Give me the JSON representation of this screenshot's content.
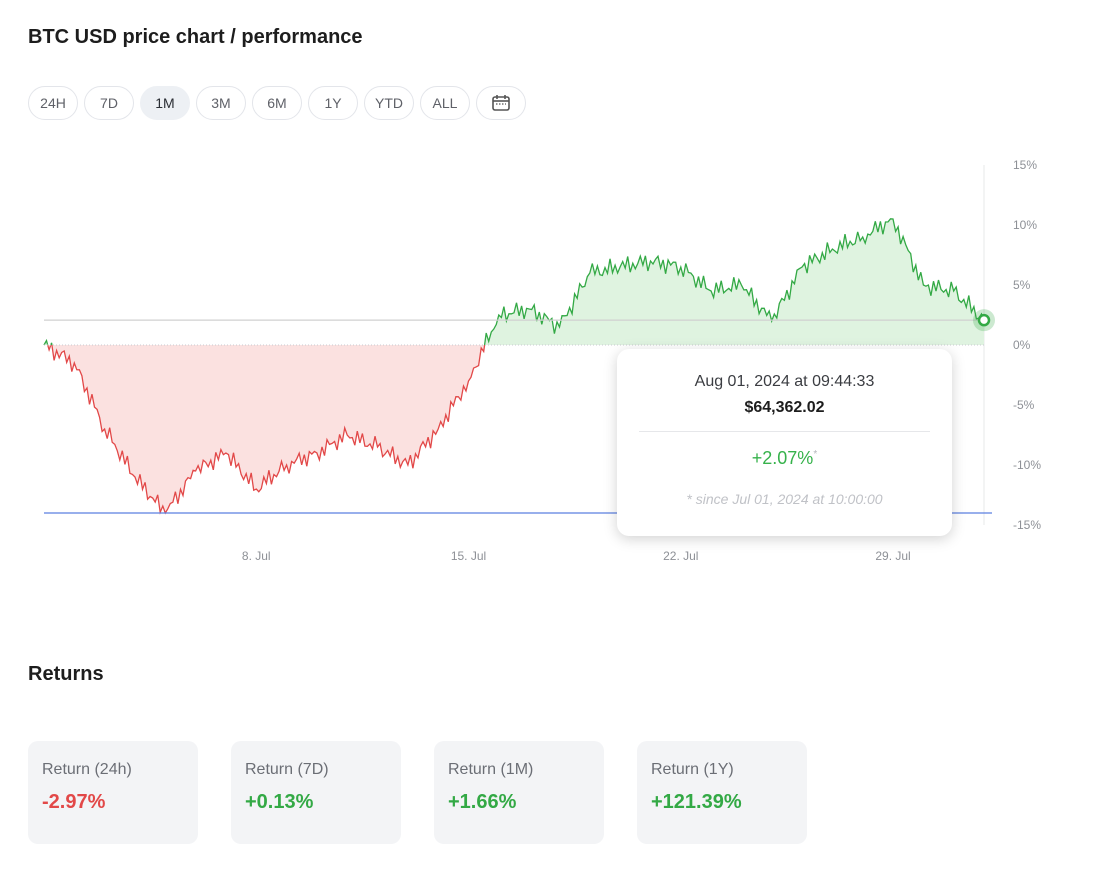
{
  "page_title": "BTC USD price chart / performance",
  "ranges": [
    {
      "label": "24H",
      "active": false
    },
    {
      "label": "7D",
      "active": false
    },
    {
      "label": "1M",
      "active": true
    },
    {
      "label": "3M",
      "active": false
    },
    {
      "label": "6M",
      "active": false
    },
    {
      "label": "1Y",
      "active": false
    },
    {
      "label": "YTD",
      "active": false
    },
    {
      "label": "ALL",
      "active": false
    }
  ],
  "calendar_icon": "calendar-icon",
  "tooltip": {
    "date": "Aug 01, 2024 at 09:44:33",
    "price": "$64,362.02",
    "change": "+2.07%",
    "change_marker": "*",
    "note": "* since Jul 01, 2024 at 10:00:00"
  },
  "returns_title": "Returns",
  "returns": [
    {
      "label": "Return (24h)",
      "value": "-2.97%",
      "direction": "negative"
    },
    {
      "label": "Return (7D)",
      "value": "+0.13%",
      "direction": "positive"
    },
    {
      "label": "Return (1M)",
      "value": "+1.66%",
      "direction": "positive"
    },
    {
      "label": "Return (1Y)",
      "value": "+121.39%",
      "direction": "positive"
    }
  ],
  "colors": {
    "positive": "#33a945",
    "negative": "#e24848",
    "positive_fill": "#dff3e0",
    "negative_fill": "#fbe1e0",
    "min_line": "#5b7fe0",
    "current_line": "#d0d0d0"
  },
  "chart_data": {
    "type": "area",
    "title": "",
    "xlabel": "",
    "ylabel": "",
    "x_tick_labels": [
      "8. Jul",
      "15. Jul",
      "22. Jul",
      "29. Jul"
    ],
    "y_tick_labels": [
      "15%",
      "10%",
      "5%",
      "0%",
      "-5%",
      "-10%",
      "-15%"
    ],
    "ylim": [
      -15,
      15
    ],
    "xlim": [
      "2024-07-01",
      "2024-08-01"
    ],
    "baseline": 0,
    "current_value": 2.07,
    "min_value": -14,
    "grid": false,
    "series": [
      {
        "x": [
          "2024-07-01",
          "2024-07-02",
          "2024-07-03",
          "2024-07-04",
          "2024-07-05",
          "2024-07-06",
          "2024-07-07",
          "2024-07-08",
          "2024-07-09",
          "2024-07-10",
          "2024-07-11",
          "2024-07-12",
          "2024-07-13",
          "2024-07-14",
          "2024-07-15",
          "2024-07-16",
          "2024-07-17",
          "2024-07-18",
          "2024-07-19",
          "2024-07-20",
          "2024-07-21",
          "2024-07-22",
          "2024-07-23",
          "2024-07-24",
          "2024-07-25",
          "2024-07-26",
          "2024-07-27",
          "2024-07-28",
          "2024-07-29",
          "2024-07-30",
          "2024-07-31",
          "2024-08-01"
        ],
        "values": [
          0,
          -1.5,
          -7,
          -11,
          -14,
          -10.5,
          -9,
          -12,
          -10,
          -9,
          -7.5,
          -8.5,
          -10,
          -7,
          -3,
          2.5,
          3,
          1.5,
          6,
          6.5,
          7,
          6.5,
          4.5,
          5,
          2,
          6.5,
          8,
          9,
          10.5,
          5,
          4.5,
          2.07
        ]
      }
    ]
  }
}
